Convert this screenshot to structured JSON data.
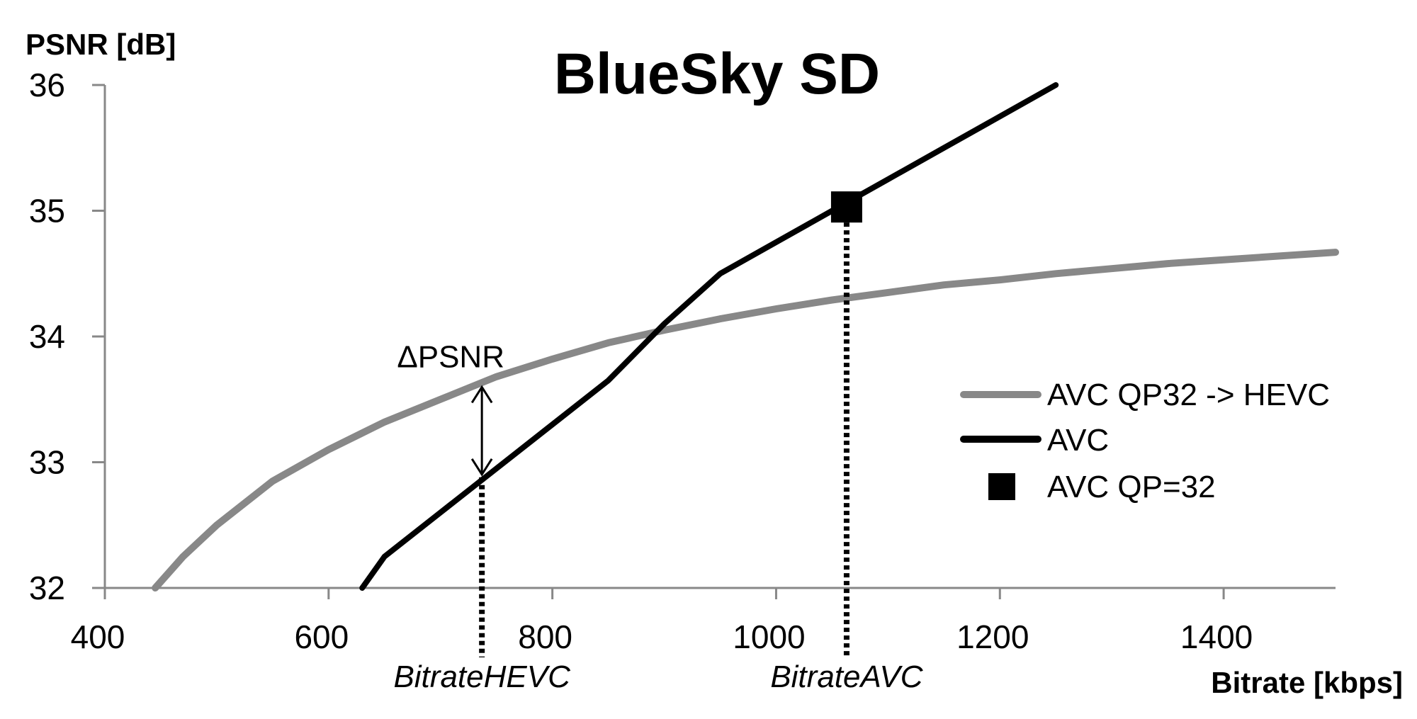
{
  "chart_data": {
    "type": "line",
    "title": "BlueSky SD",
    "xlabel": "Bitrate [kbps]",
    "ylabel": "PSNR [dB]",
    "xlim": [
      400,
      1500
    ],
    "ylim": [
      32,
      36
    ],
    "x_ticks": [
      400,
      600,
      800,
      1000,
      1200,
      1400
    ],
    "y_ticks": [
      32,
      33,
      34,
      35,
      36
    ],
    "grid": false,
    "legend_position": "right",
    "series": [
      {
        "name": "AVC QP32 -> HEVC",
        "color": "#888888",
        "style": "line",
        "points": [
          [
            445,
            32.0
          ],
          [
            470,
            32.25
          ],
          [
            500,
            32.5
          ],
          [
            550,
            32.85
          ],
          [
            600,
            33.1
          ],
          [
            650,
            33.32
          ],
          [
            700,
            33.5
          ],
          [
            750,
            33.68
          ],
          [
            800,
            33.82
          ],
          [
            850,
            33.95
          ],
          [
            900,
            34.05
          ],
          [
            950,
            34.14
          ],
          [
            1000,
            34.22
          ],
          [
            1050,
            34.29
          ],
          [
            1100,
            34.35
          ],
          [
            1150,
            34.41
          ],
          [
            1200,
            34.45
          ],
          [
            1250,
            34.5
          ],
          [
            1300,
            34.54
          ],
          [
            1350,
            34.58
          ],
          [
            1400,
            34.61
          ],
          [
            1450,
            34.64
          ],
          [
            1500,
            34.67
          ]
        ]
      },
      {
        "name": "AVC",
        "color": "#000000",
        "style": "line",
        "points": [
          [
            630,
            32.0
          ],
          [
            650,
            32.25
          ],
          [
            700,
            32.6
          ],
          [
            750,
            32.95
          ],
          [
            800,
            33.3
          ],
          [
            850,
            33.65
          ],
          [
            900,
            34.1
          ],
          [
            950,
            34.5
          ],
          [
            1000,
            34.75
          ],
          [
            1050,
            35.0
          ],
          [
            1100,
            35.25
          ],
          [
            1150,
            35.5
          ],
          [
            1200,
            35.75
          ],
          [
            1250,
            36.0
          ]
        ]
      },
      {
        "name": "AVC QP=32",
        "color": "#000000",
        "style": "marker",
        "points": [
          [
            1063,
            35.03
          ]
        ]
      }
    ],
    "annotations": {
      "delta_psnr": {
        "label": "ΔPSNR",
        "x": 737,
        "y_top": 33.62,
        "y_bottom": 32.88
      },
      "bitrate_hevc": {
        "label": "BitrateHEVC",
        "x": 737,
        "y": 32.88
      },
      "bitrate_avc": {
        "label": "BitrateAVC",
        "x": 1063,
        "y": 35.03
      }
    }
  }
}
